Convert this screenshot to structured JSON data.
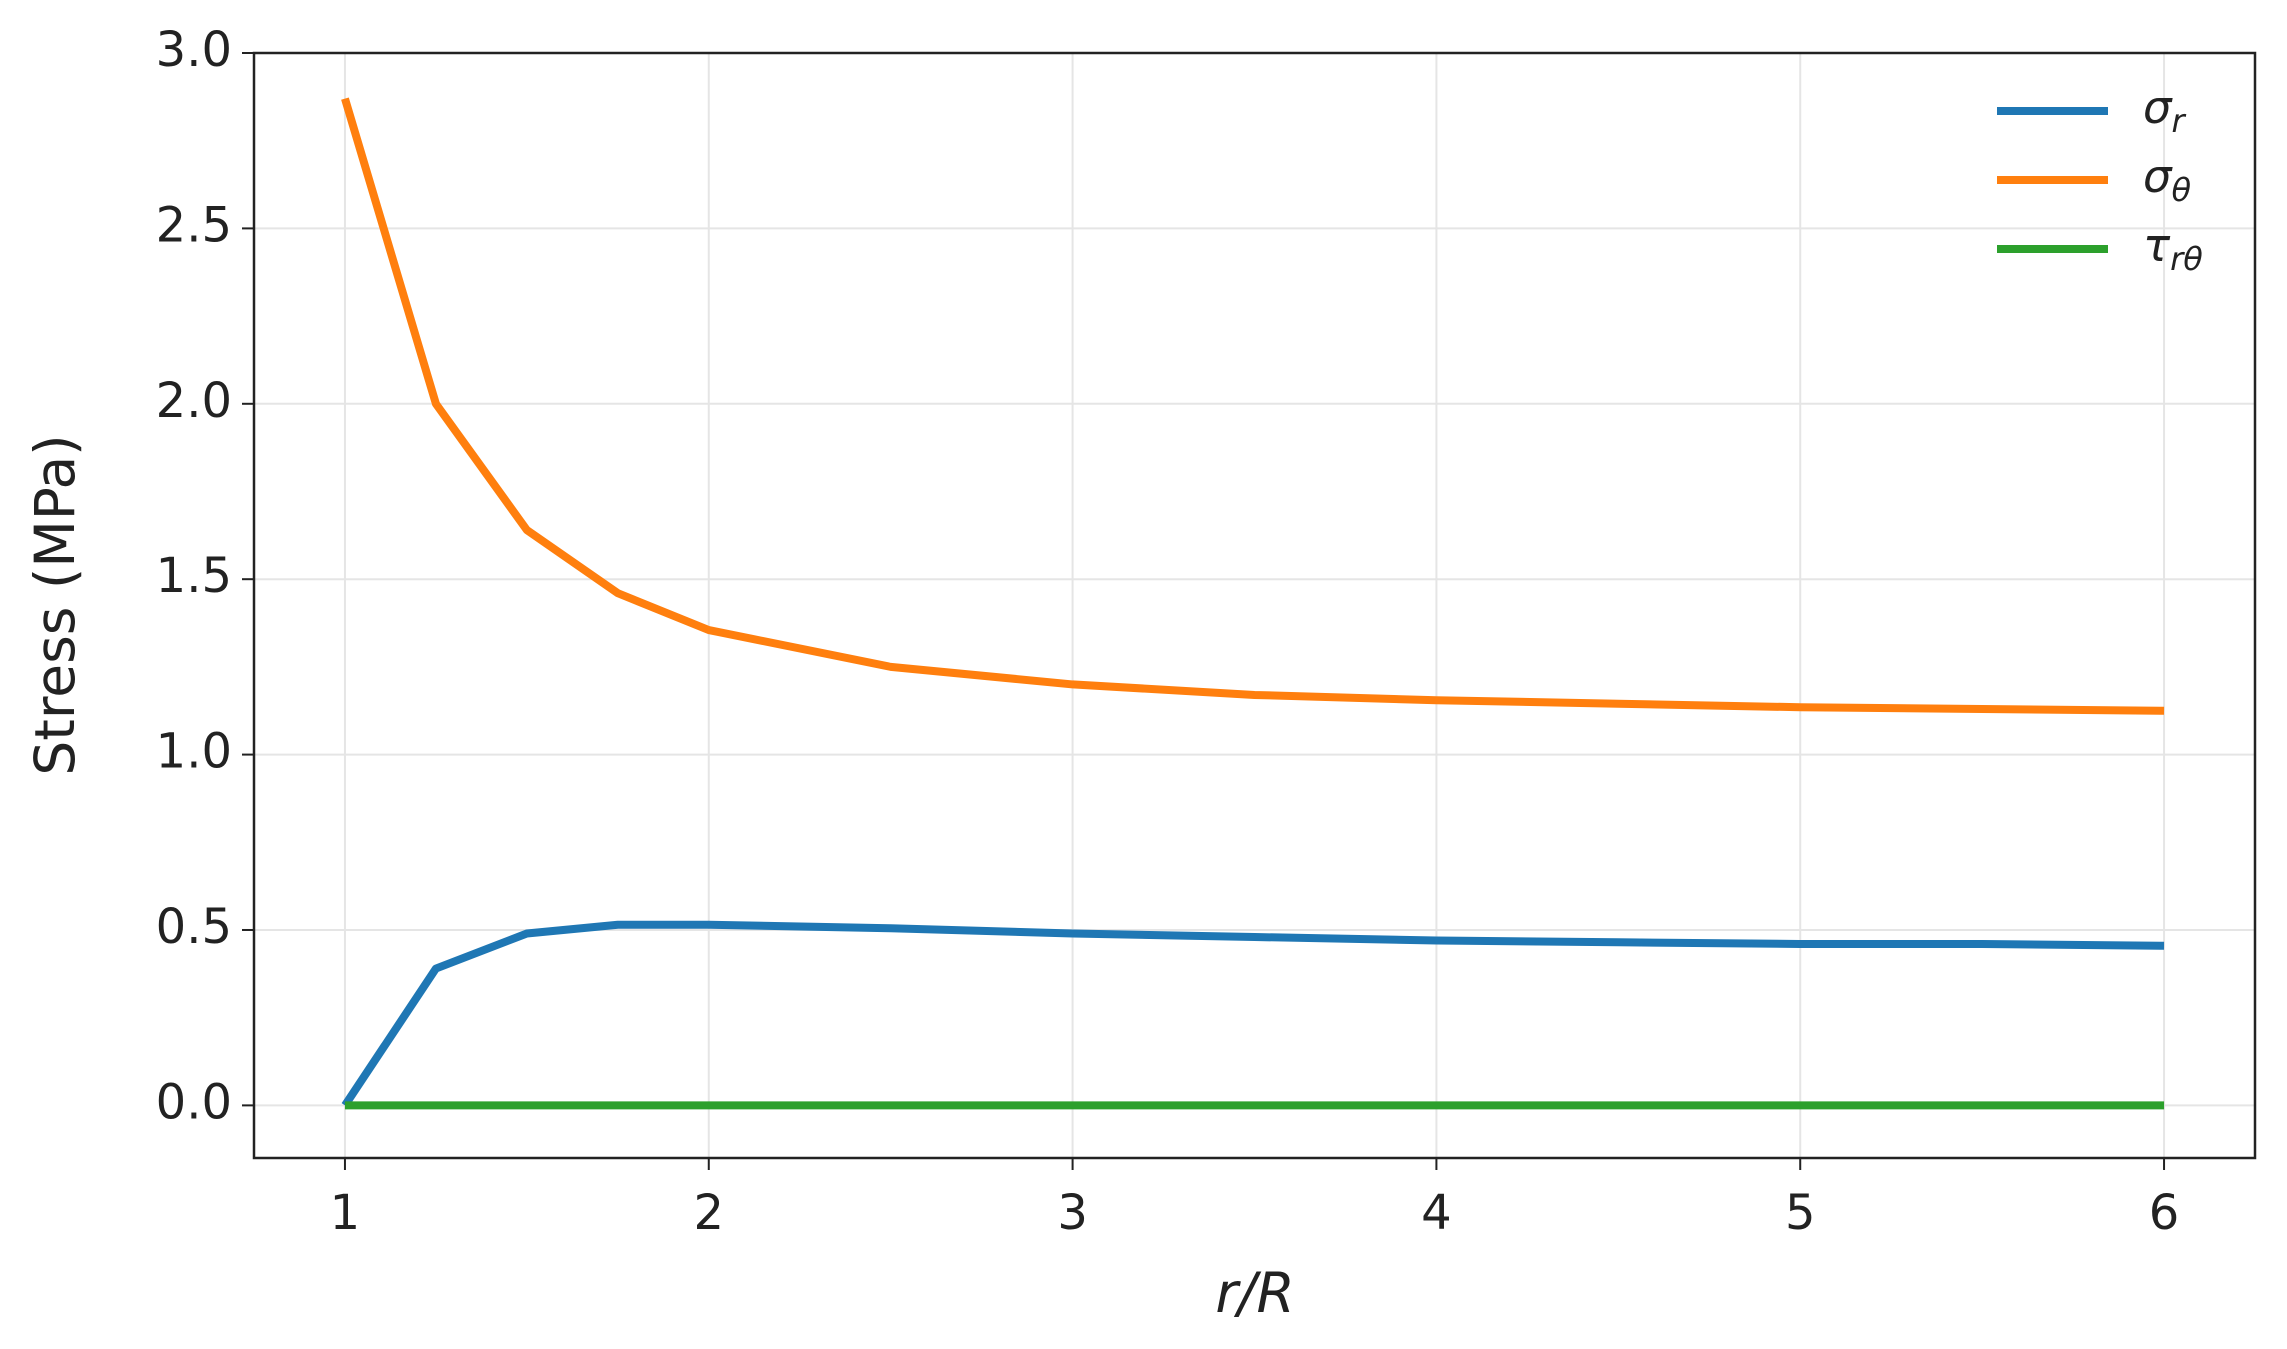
{
  "chart_data": {
    "type": "line",
    "x_label": "r/R",
    "y_label": "Stress (MPa)",
    "x": [
      1,
      1.25,
      1.5,
      1.75,
      2,
      2.5,
      3,
      3.5,
      4,
      4.5,
      5,
      5.5,
      6
    ],
    "series": [
      {
        "name": "σr",
        "color": "#1f77b4",
        "values": [
          0,
          0.39,
          0.49,
          0.515,
          0.515,
          0.505,
          0.49,
          0.48,
          0.47,
          0.465,
          0.46,
          0.46,
          0.455
        ]
      },
      {
        "name": "σθ",
        "color": "#ff7f0e",
        "values": [
          2.87,
          2.0,
          1.64,
          1.46,
          1.355,
          1.25,
          1.2,
          1.17,
          1.155,
          1.145,
          1.135,
          1.13,
          1.125
        ]
      },
      {
        "name": "τrθ",
        "color": "#2ca02c",
        "values": [
          0,
          0,
          0,
          0,
          0,
          0,
          0,
          0,
          0,
          0,
          0,
          0,
          0
        ]
      }
    ],
    "xlim": [
      0.75,
      6.25
    ],
    "xticks": [
      1,
      2,
      3,
      4,
      5,
      6
    ],
    "ylim": [
      -0.15,
      3.0
    ],
    "yticks": [
      {
        "value": 0,
        "label": "0.0"
      },
      0.5,
      {
        "value": 1,
        "label": "1.0"
      },
      1.5,
      {
        "value": 2,
        "label": "2.0"
      },
      2.5,
      {
        "value": 3,
        "label": "3.0"
      }
    ],
    "grid": true,
    "legend": "upper right"
  }
}
